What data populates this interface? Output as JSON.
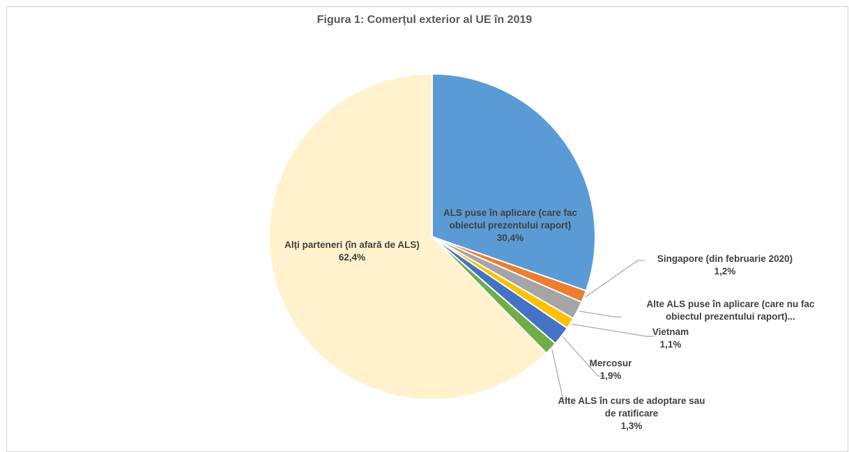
{
  "chart_data": {
    "type": "pie",
    "title": "Figura 1: Comerțul exterior al UE în 2019",
    "slices": [
      {
        "name": "ALS puse în aplicare (care fac obiectul prezentului raport)",
        "value": 30.4,
        "value_label": "30,4%",
        "color": "#5b9bd5"
      },
      {
        "name": "Singapore (din februarie 2020)",
        "value": 1.2,
        "value_label": "1,2%",
        "color": "#ed7d31"
      },
      {
        "name": "Alte ALS puse în aplicare (care nu fac obiectul prezentului raport)...",
        "value": 1.8,
        "value_label": "",
        "color": "#a5a5a5"
      },
      {
        "name": "Vietnam",
        "value": 1.1,
        "value_label": "1,1%",
        "color": "#ffc000"
      },
      {
        "name": "Mercosur",
        "value": 1.9,
        "value_label": "1,9%",
        "color": "#4472c4"
      },
      {
        "name": "Alte ALS în curs de adoptare sau de ratificare",
        "value": 1.3,
        "value_label": "1,3%",
        "color": "#70ad47"
      },
      {
        "name": "Alți parteneri (în afară de ALS)",
        "value": 62.4,
        "value_label": "62,4%",
        "color": "#fff2cc"
      }
    ],
    "start_angle_deg": 0,
    "direction": "clockwise",
    "data_labels": true,
    "legend": "none"
  }
}
